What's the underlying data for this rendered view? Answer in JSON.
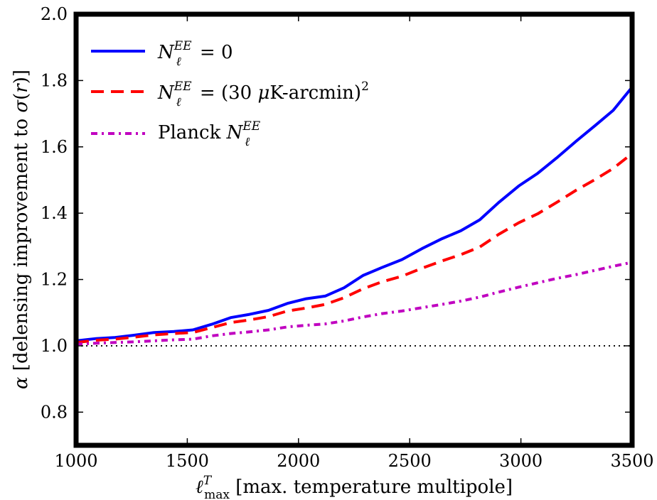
{
  "chart_data": {
    "type": "line",
    "xlabel": "ℓ^T_max [max. temperature multipole]",
    "ylabel": "α [delensing improvement to σ(r)]",
    "xlim": [
      1000,
      3500
    ],
    "ylim": [
      0.7,
      2.0
    ],
    "x_ticks": [
      "1000",
      "1500",
      "2000",
      "2500",
      "3000",
      "3500"
    ],
    "y_ticks": [
      "0.8",
      "1.0",
      "1.2",
      "1.4",
      "1.6",
      "1.8",
      "2.0"
    ],
    "reference_line": {
      "y": 1.0,
      "style": "dotted",
      "color": "#000000"
    },
    "legend_position": "top-left",
    "legend": [
      {
        "label": "N_ℓ^EE = 0"
      },
      {
        "label": "N_ℓ^EE = (30 μK-arcmin)²"
      },
      {
        "label": "Planck N_ℓ^EE"
      }
    ],
    "series": [
      {
        "color": "#0000ff",
        "dash": "solid",
        "x": [
          1000,
          1090,
          1170,
          1260,
          1350,
          1440,
          1525,
          1610,
          1695,
          1780,
          1865,
          1950,
          2035,
          2120,
          2205,
          2290,
          2375,
          2465,
          2555,
          2645,
          2730,
          2815,
          2900,
          2990,
          3075,
          3160,
          3250,
          3335,
          3415,
          3500
        ],
        "y": [
          1.015,
          1.022,
          1.025,
          1.032,
          1.04,
          1.043,
          1.048,
          1.065,
          1.085,
          1.095,
          1.107,
          1.128,
          1.142,
          1.15,
          1.175,
          1.212,
          1.236,
          1.26,
          1.293,
          1.323,
          1.347,
          1.38,
          1.432,
          1.482,
          1.52,
          1.566,
          1.618,
          1.665,
          1.71,
          1.78
        ]
      },
      {
        "color": "#ff0000",
        "dash": "dashed",
        "x": [
          1000,
          1090,
          1170,
          1260,
          1350,
          1440,
          1525,
          1610,
          1695,
          1780,
          1865,
          1950,
          2035,
          2120,
          2205,
          2290,
          2375,
          2465,
          2555,
          2645,
          2730,
          2815,
          2900,
          2990,
          3075,
          3160,
          3250,
          3335,
          3415,
          3500
        ],
        "y": [
          1.01,
          1.017,
          1.02,
          1.026,
          1.033,
          1.037,
          1.04,
          1.055,
          1.07,
          1.078,
          1.088,
          1.105,
          1.114,
          1.125,
          1.145,
          1.172,
          1.193,
          1.21,
          1.234,
          1.256,
          1.275,
          1.298,
          1.336,
          1.371,
          1.398,
          1.432,
          1.47,
          1.502,
          1.535,
          1.58
        ]
      },
      {
        "color": "#c000c0",
        "dash": "dashdot",
        "x": [
          1000,
          1090,
          1170,
          1260,
          1350,
          1440,
          1525,
          1610,
          1695,
          1780,
          1865,
          1950,
          2035,
          2120,
          2205,
          2290,
          2375,
          2465,
          2555,
          2645,
          2730,
          2815,
          2900,
          2990,
          3075,
          3160,
          3250,
          3335,
          3415,
          3500
        ],
        "y": [
          1.005,
          1.008,
          1.01,
          1.012,
          1.015,
          1.018,
          1.02,
          1.03,
          1.037,
          1.042,
          1.048,
          1.057,
          1.062,
          1.066,
          1.075,
          1.087,
          1.097,
          1.105,
          1.115,
          1.125,
          1.135,
          1.147,
          1.162,
          1.177,
          1.19,
          1.203,
          1.215,
          1.228,
          1.24,
          1.252
        ]
      }
    ]
  }
}
